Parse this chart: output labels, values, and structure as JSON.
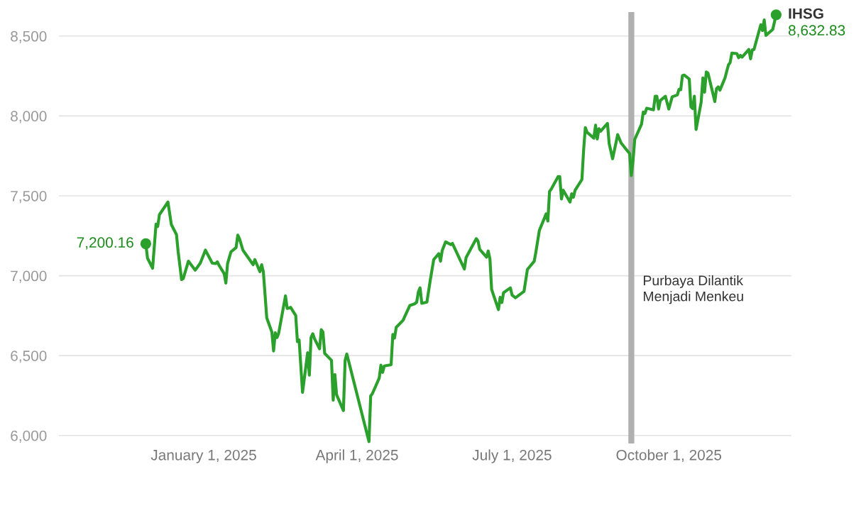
{
  "chart_data": {
    "type": "line",
    "x": [
      "2024-11-28",
      "2024-11-29",
      "2024-12-02",
      "2024-12-04",
      "2024-12-05",
      "2024-12-06",
      "2024-12-11",
      "2024-12-13",
      "2024-12-16",
      "2024-12-17",
      "2024-12-19",
      "2024-12-20",
      "2024-12-23",
      "2024-12-27",
      "2024-12-30",
      "2025-01-02",
      "2025-01-06",
      "2025-01-08",
      "2025-01-09",
      "2025-01-10",
      "2025-01-13",
      "2025-01-14",
      "2025-01-15",
      "2025-01-17",
      "2025-01-20",
      "2025-01-21",
      "2025-01-22",
      "2025-01-24",
      "2025-01-30",
      "2025-01-31",
      "2025-02-03",
      "2025-02-04",
      "2025-02-05",
      "2025-02-07",
      "2025-02-10",
      "2025-02-11",
      "2025-02-12",
      "2025-02-13",
      "2025-02-14",
      "2025-02-18",
      "2025-02-19",
      "2025-02-21",
      "2025-02-24",
      "2025-02-25",
      "2025-02-26",
      "2025-02-28",
      "2025-03-03",
      "2025-03-04",
      "2025-03-05",
      "2025-03-06",
      "2025-03-07",
      "2025-03-10",
      "2025-03-11",
      "2025-03-12",
      "2025-03-13",
      "2025-03-17",
      "2025-03-18",
      "2025-03-19",
      "2025-03-20",
      "2025-03-24",
      "2025-03-25",
      "2025-03-26",
      "2025-04-08",
      "2025-04-09",
      "2025-04-10",
      "2025-04-14",
      "2025-04-15",
      "2025-04-16",
      "2025-04-17",
      "2025-04-21",
      "2025-04-22",
      "2025-04-23",
      "2025-04-24",
      "2025-04-28",
      "2025-05-02",
      "2025-05-05",
      "2025-05-06",
      "2025-05-07",
      "2025-05-08",
      "2025-05-09",
      "2025-05-12",
      "2025-05-14",
      "2025-05-16",
      "2025-05-19",
      "2025-05-20",
      "2025-05-21",
      "2025-05-23",
      "2025-05-26",
      "2025-05-27",
      "2025-06-03",
      "2025-06-04",
      "2025-06-10",
      "2025-06-11",
      "2025-06-12",
      "2025-06-16",
      "2025-06-17",
      "2025-06-18",
      "2025-06-19",
      "2025-06-23",
      "2025-06-24",
      "2025-06-25",
      "2025-06-26",
      "2025-06-30",
      "2025-07-01",
      "2025-07-03",
      "2025-07-08",
      "2025-07-10",
      "2025-07-14",
      "2025-07-15",
      "2025-07-17",
      "2025-07-21",
      "2025-07-22",
      "2025-07-23",
      "2025-07-24",
      "2025-07-28",
      "2025-07-29",
      "2025-07-30",
      "2025-07-31",
      "2025-08-04",
      "2025-08-05",
      "2025-08-06",
      "2025-08-07",
      "2025-08-11",
      "2025-08-12",
      "2025-08-13",
      "2025-08-14",
      "2025-08-18",
      "2025-08-19",
      "2025-08-20",
      "2025-08-21",
      "2025-08-22",
      "2025-08-26",
      "2025-08-27",
      "2025-08-29",
      "2025-09-01",
      "2025-09-03",
      "2025-09-08",
      "2025-09-09",
      "2025-09-10",
      "2025-09-11",
      "2025-09-15",
      "2025-09-16",
      "2025-09-17",
      "2025-09-18",
      "2025-09-22",
      "2025-09-23",
      "2025-09-24",
      "2025-09-25",
      "2025-09-26",
      "2025-09-29",
      "2025-10-01",
      "2025-10-03",
      "2025-10-06",
      "2025-10-07",
      "2025-10-08",
      "2025-10-09",
      "2025-10-10",
      "2025-10-13",
      "2025-10-14",
      "2025-10-15",
      "2025-10-16",
      "2025-10-17",
      "2025-10-20",
      "2025-10-21",
      "2025-10-22",
      "2025-10-23",
      "2025-10-24",
      "2025-10-28",
      "2025-10-29",
      "2025-10-30",
      "2025-10-31",
      "2025-11-03",
      "2025-11-04",
      "2025-11-05",
      "2025-11-06",
      "2025-11-07",
      "2025-11-10",
      "2025-11-11",
      "2025-11-12",
      "2025-11-13",
      "2025-11-17",
      "2025-11-18",
      "2025-11-19",
      "2025-11-20",
      "2025-11-24",
      "2025-11-25",
      "2025-11-26",
      "2025-11-27",
      "2025-12-01",
      "2025-12-03"
    ],
    "series": [
      {
        "name": "IHSG",
        "color": "#2ca02c",
        "values": [
          7200.16,
          7110,
          7047,
          7323,
          7309,
          7382,
          7461,
          7320,
          7258,
          7150,
          6976,
          6983,
          7091,
          7035,
          7079,
          7160,
          7079,
          7076,
          7087,
          7065,
          7013,
          6954,
          7076,
          7150,
          7176,
          7254,
          7232,
          7160,
          7069,
          7101,
          7025,
          7069,
          7025,
          6736,
          6647,
          6529,
          6643,
          6613,
          6640,
          6874,
          6795,
          6802,
          6751,
          6588,
          6598,
          6270,
          6518,
          6378,
          6613,
          6637,
          6606,
          6543,
          6662,
          6647,
          6514,
          6470,
          6221,
          6381,
          6255,
          6156,
          6470,
          6510,
          5962,
          6248,
          6262,
          6359,
          6440,
          6395,
          6435,
          6443,
          6632,
          6610,
          6677,
          6721,
          6814,
          6825,
          6834,
          6899,
          6924,
          6827,
          6835,
          6973,
          7101,
          7138,
          7091,
          7158,
          7212,
          7195,
          7202,
          7042,
          7113,
          7232,
          7217,
          7165,
          7116,
          7155,
          7106,
          6914,
          6788,
          6865,
          6832,
          6894,
          6924,
          6879,
          6862,
          6902,
          7039,
          7091,
          7150,
          7283,
          7387,
          7342,
          7528,
          7542,
          7620,
          7620,
          7480,
          7535,
          7461,
          7513,
          7491,
          7535,
          7602,
          7787,
          7927,
          7898,
          7861,
          7942,
          7856,
          7920,
          7905,
          7953,
          7826,
          7732,
          7883,
          7831,
          7764,
          7627,
          7720,
          7853,
          7949,
          8024,
          8016,
          8048,
          8038,
          8123,
          8123,
          8043,
          8097,
          8123,
          8043,
          8120,
          8131,
          8167,
          8164,
          8253,
          8256,
          8231,
          8057,
          8046,
          8123,
          7915,
          8087,
          8238,
          8149,
          8275,
          8268,
          8090,
          8171,
          8182,
          8161,
          8238,
          8279,
          8319,
          8334,
          8393,
          8390,
          8364,
          8379,
          8368,
          8416,
          8357,
          8413,
          8416,
          8571,
          8534,
          8601,
          8504,
          8541,
          8632.83
        ],
        "value_labels": [
          "7,200.16",
          null,
          null,
          null,
          null,
          null,
          null,
          null,
          null,
          null,
          null,
          null,
          null,
          null,
          null,
          null,
          null,
          null,
          null,
          null,
          null,
          null,
          null,
          null,
          null,
          null,
          null,
          null,
          null,
          null,
          null,
          null,
          null,
          null,
          null,
          null,
          null,
          null,
          null,
          null,
          null,
          null,
          null,
          null,
          null,
          null,
          null,
          null,
          null,
          null,
          null,
          null,
          null,
          null,
          null,
          null,
          null,
          null,
          null,
          null,
          null,
          null,
          null,
          null,
          null,
          null,
          null,
          null,
          null,
          null,
          null,
          null,
          null,
          null,
          null,
          null,
          null,
          null,
          null,
          null,
          null,
          null,
          null,
          null,
          null,
          null,
          null,
          null,
          null,
          null,
          null,
          null,
          null,
          null,
          null,
          null,
          null,
          null,
          null,
          null,
          null,
          null,
          null,
          null,
          null,
          null,
          null,
          null,
          null,
          null,
          null,
          null,
          null,
          null,
          null,
          null,
          null,
          null,
          null,
          null,
          null,
          null,
          null,
          null,
          null,
          null,
          null,
          null,
          null,
          null,
          null,
          null,
          null,
          null,
          null,
          null,
          null,
          null,
          null,
          null,
          null,
          null,
          null,
          null,
          null,
          null,
          null,
          null,
          null,
          null,
          null,
          null,
          null,
          null,
          null,
          null,
          null,
          null,
          null,
          null,
          null,
          null,
          null,
          null,
          null,
          null,
          null,
          null,
          null,
          null,
          null,
          null,
          null,
          null,
          null,
          null,
          null,
          null,
          null,
          null,
          null,
          null,
          null,
          null,
          null,
          null,
          null,
          null,
          null,
          "8,632.83"
        ]
      }
    ],
    "xlim": [
      "2024-10-08",
      "2025-12-12"
    ],
    "xticks": [
      {
        "value": "2025-01-01",
        "label": "January 1, 2025"
      },
      {
        "value": "2025-04-01",
        "label": "April 1, 2025"
      },
      {
        "value": "2025-07-01",
        "label": "July 1, 2025"
      },
      {
        "value": "2025-10-01",
        "label": "October 1, 2025"
      }
    ],
    "ylim": [
      5950,
      8650
    ],
    "yticks": [
      {
        "value": 6000,
        "label": "6,000"
      },
      {
        "value": 6500,
        "label": "6,500"
      },
      {
        "value": 7000,
        "label": "7,000"
      },
      {
        "value": 7500,
        "label": "7,500"
      },
      {
        "value": 8000,
        "label": "8,000"
      },
      {
        "value": 8500,
        "label": "8,500"
      }
    ],
    "ref_lines": [
      {
        "axis": "x",
        "value": "2025-09-09",
        "label": "Purbaya Dilantik\nMenjadi Menkeu",
        "color": "#b0b0b0"
      }
    ],
    "grid": "y",
    "legend": false,
    "line_style": "solid"
  }
}
